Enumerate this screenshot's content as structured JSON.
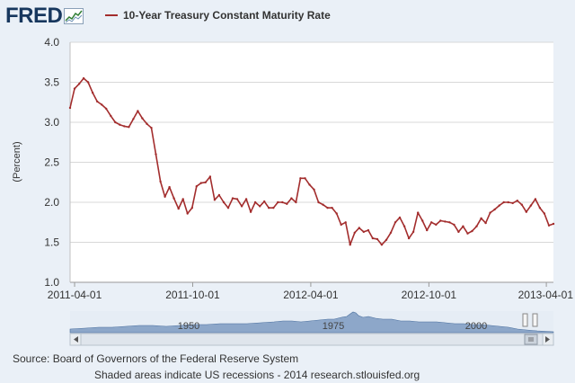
{
  "header": {
    "logo_text": "FRED",
    "logo_icon": "chart-line-icon"
  },
  "chart_data": {
    "type": "line",
    "series": [
      {
        "name": "10-Year Treasury Constant Maturity Rate",
        "color": "#a32d2d",
        "x": [
          "2011-03-25",
          "2011-04-01",
          "2011-04-08",
          "2011-04-15",
          "2011-04-22",
          "2011-04-29",
          "2011-05-06",
          "2011-05-13",
          "2011-05-20",
          "2011-05-27",
          "2011-06-03",
          "2011-06-10",
          "2011-06-17",
          "2011-06-24",
          "2011-07-01",
          "2011-07-08",
          "2011-07-15",
          "2011-07-22",
          "2011-07-29",
          "2011-08-05",
          "2011-08-12",
          "2011-08-19",
          "2011-08-26",
          "2011-09-02",
          "2011-09-09",
          "2011-09-16",
          "2011-09-23",
          "2011-09-30",
          "2011-10-07",
          "2011-10-14",
          "2011-10-21",
          "2011-10-28",
          "2011-11-04",
          "2011-11-11",
          "2011-11-18",
          "2011-11-25",
          "2011-12-02",
          "2011-12-09",
          "2011-12-16",
          "2011-12-23",
          "2011-12-30",
          "2012-01-06",
          "2012-01-13",
          "2012-01-20",
          "2012-01-27",
          "2012-02-03",
          "2012-02-10",
          "2012-02-17",
          "2012-02-24",
          "2012-03-02",
          "2012-03-09",
          "2012-03-16",
          "2012-03-23",
          "2012-03-30",
          "2012-04-06",
          "2012-04-13",
          "2012-04-20",
          "2012-04-27",
          "2012-05-04",
          "2012-05-11",
          "2012-05-18",
          "2012-05-25",
          "2012-06-01",
          "2012-06-08",
          "2012-06-15",
          "2012-06-22",
          "2012-06-29",
          "2012-07-06",
          "2012-07-13",
          "2012-07-20",
          "2012-07-27",
          "2012-08-03",
          "2012-08-10",
          "2012-08-17",
          "2012-08-24",
          "2012-08-31",
          "2012-09-07",
          "2012-09-14",
          "2012-09-21",
          "2012-09-28",
          "2012-10-05",
          "2012-10-12",
          "2012-10-19",
          "2012-10-26",
          "2012-11-02",
          "2012-11-09",
          "2012-11-16",
          "2012-11-23",
          "2012-11-30",
          "2012-12-07",
          "2012-12-14",
          "2012-12-21",
          "2012-12-28",
          "2013-01-04",
          "2013-01-11",
          "2013-01-18",
          "2013-01-25",
          "2013-02-01",
          "2013-02-08",
          "2013-02-15",
          "2013-02-22",
          "2013-03-01",
          "2013-03-08",
          "2013-03-15",
          "2013-03-22",
          "2013-03-29",
          "2013-04-05",
          "2013-04-12"
        ],
        "values": [
          3.18,
          3.42,
          3.48,
          3.55,
          3.5,
          3.37,
          3.26,
          3.22,
          3.17,
          3.08,
          3.0,
          2.97,
          2.95,
          2.94,
          3.04,
          3.14,
          3.05,
          2.98,
          2.93,
          2.6,
          2.26,
          2.07,
          2.19,
          2.05,
          1.92,
          2.04,
          1.86,
          1.93,
          2.2,
          2.24,
          2.25,
          2.32,
          2.03,
          2.09,
          2.0,
          1.93,
          2.05,
          2.04,
          1.95,
          2.04,
          1.88,
          2.0,
          1.95,
          2.01,
          1.93,
          1.93,
          2.0,
          2.0,
          1.98,
          2.05,
          2.0,
          2.3,
          2.3,
          2.22,
          2.16,
          2.0,
          1.97,
          1.93,
          1.93,
          1.86,
          1.72,
          1.75,
          1.47,
          1.62,
          1.68,
          1.63,
          1.65,
          1.55,
          1.54,
          1.47,
          1.53,
          1.62,
          1.75,
          1.81,
          1.7,
          1.55,
          1.63,
          1.87,
          1.77,
          1.65,
          1.75,
          1.72,
          1.77,
          1.76,
          1.75,
          1.72,
          1.63,
          1.7,
          1.61,
          1.64,
          1.7,
          1.8,
          1.74,
          1.87,
          1.91,
          1.96,
          2.0,
          2.0,
          1.99,
          2.02,
          1.97,
          1.88,
          1.96,
          2.04,
          1.93,
          1.86,
          1.71,
          1.73
        ]
      }
    ],
    "x_ticks": [
      "2011-04-01",
      "2011-10-01",
      "2012-04-01",
      "2012-10-01",
      "2013-04-01"
    ],
    "y_ticks": [
      "1.0",
      "1.5",
      "2.0",
      "2.5",
      "3.0",
      "3.5",
      "4.0"
    ],
    "ylabel": "(Percent)",
    "xlim": [
      "2011-03-25",
      "2013-04-12"
    ],
    "ylim": [
      1.0,
      4.0
    ],
    "grid": true,
    "legend": "top-left",
    "navigator": {
      "labels": [
        "1950",
        "1975",
        "2000"
      ]
    }
  },
  "footer": {
    "source": "Source: Board of Governors of the Federal Reserve System",
    "note": "Shaded areas indicate US recessions - 2014 research.stlouisfed.org"
  }
}
